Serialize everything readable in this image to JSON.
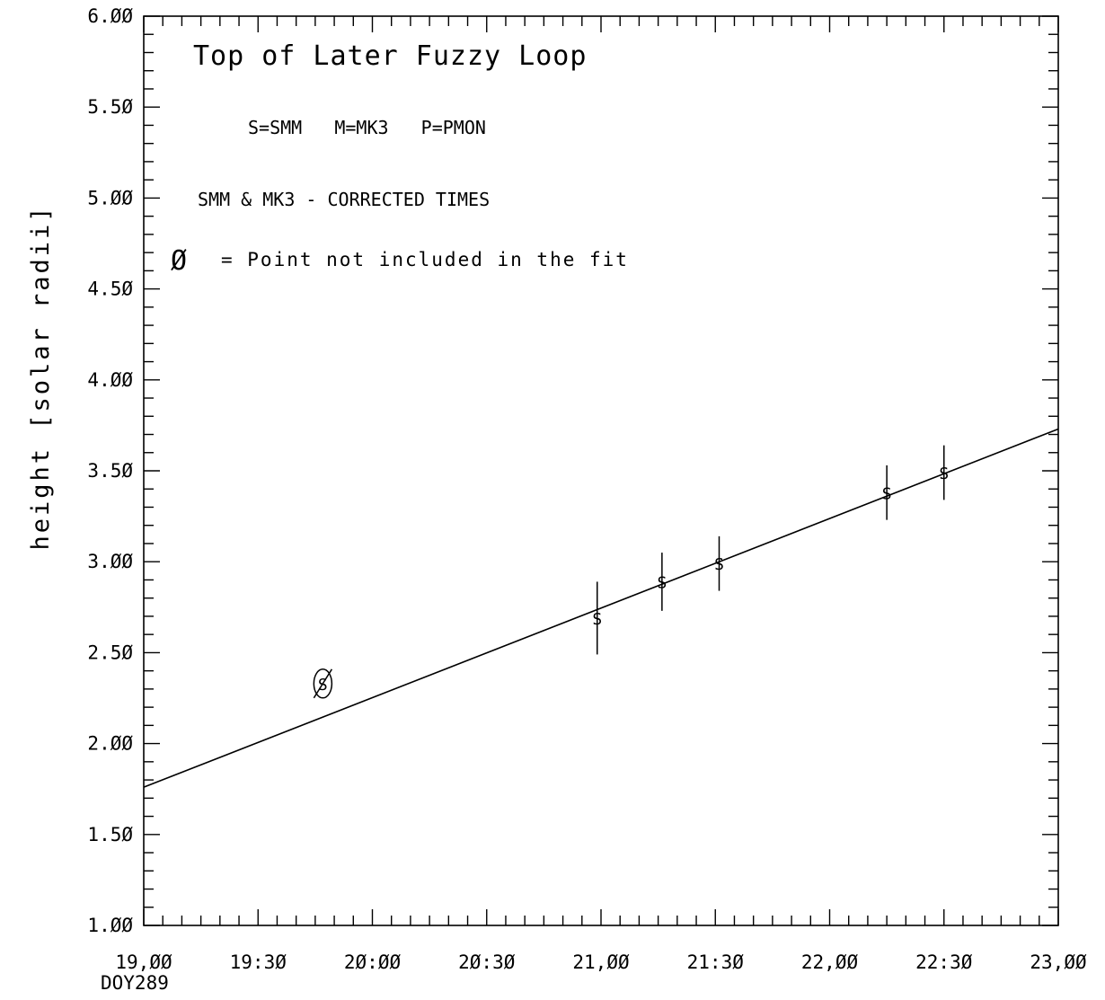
{
  "chart_data": {
    "type": "scatter",
    "title": "Top of Later Fuzzy Loop",
    "ylabel": "height [solar radii]",
    "xlabel": "",
    "x_start_label": "DOY289",
    "xlim": [
      "19:00",
      "23:00"
    ],
    "ylim": [
      1.0,
      6.0
    ],
    "x_tick_labels": [
      "19:00",
      "19:30",
      "20:00",
      "20:30",
      "21:00",
      "21:30",
      "22:00",
      "22:30",
      "23:00"
    ],
    "y_tick_labels": [
      "1.00",
      "1.50",
      "2.00",
      "2.50",
      "3.00",
      "3.50",
      "4.00",
      "4.50",
      "5.00",
      "5.50",
      "6.00"
    ],
    "annotations": {
      "legend": "S=SMM   M=MK3   P=PMON",
      "corrected": "SMM & MK3 - CORRECTED TIMES",
      "excluded_symbol": "Ø",
      "excluded_note": "= Point not included in the fit"
    },
    "series": [
      {
        "name": "SMM",
        "marker": "S",
        "points": [
          {
            "x": "19:47",
            "y": 2.33,
            "err": 0,
            "excluded": true
          },
          {
            "x": "20:59",
            "y": 2.69,
            "err": 0.2,
            "excluded": false
          },
          {
            "x": "21:16",
            "y": 2.89,
            "err": 0.16,
            "excluded": false
          },
          {
            "x": "21:31",
            "y": 2.99,
            "err": 0.15,
            "excluded": false
          },
          {
            "x": "22:15",
            "y": 3.38,
            "err": 0.15,
            "excluded": false
          },
          {
            "x": "22:30",
            "y": 3.49,
            "err": 0.15,
            "excluded": false
          }
        ]
      }
    ],
    "fit_line": {
      "x": [
        "19:00",
        "23:00"
      ],
      "y": [
        1.76,
        3.73
      ]
    }
  }
}
